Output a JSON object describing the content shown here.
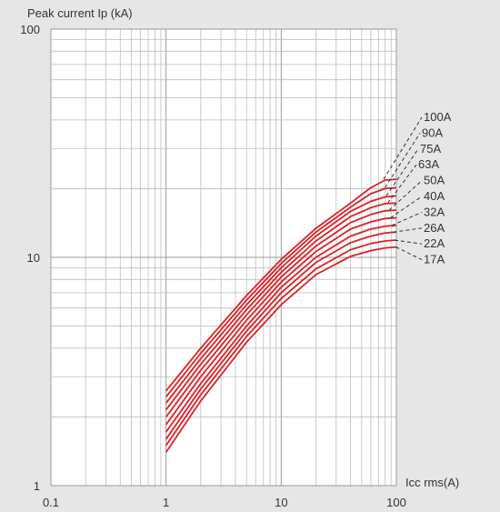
{
  "chart_data": {
    "type": "line",
    "xlabel": "Icc rms(A)",
    "ylabel": "Peak current Ip (kA)",
    "xscale": "log",
    "yscale": "log",
    "xlim": [
      0.1,
      100
    ],
    "ylim": [
      1,
      100
    ],
    "xticks": [
      "0.1",
      "1",
      "10",
      "100"
    ],
    "yticks": [
      "1",
      "10",
      "100"
    ],
    "grid": true,
    "line_color": "#dd1f26",
    "background": "#ffffff",
    "x": [
      1,
      2,
      5,
      10,
      20,
      40,
      60,
      80,
      100
    ],
    "series": [
      {
        "name": "100A",
        "values": [
          2.6,
          4.0,
          6.8,
          9.8,
          13.4,
          17.3,
          20.2,
          21.8,
          22.0
        ]
      },
      {
        "name": "90A",
        "values": [
          2.45,
          3.8,
          6.5,
          9.4,
          12.9,
          16.6,
          19.0,
          20.0,
          20.2
        ]
      },
      {
        "name": "75A",
        "values": [
          2.3,
          3.6,
          6.2,
          9.0,
          12.4,
          15.9,
          17.6,
          18.4,
          18.6
        ]
      },
      {
        "name": "63A",
        "values": [
          2.15,
          3.4,
          5.9,
          8.6,
          11.8,
          15.1,
          16.5,
          17.2,
          17.3
        ]
      },
      {
        "name": "50A",
        "values": [
          2.0,
          3.2,
          5.6,
          8.2,
          11.2,
          14.2,
          15.4,
          16.0,
          16.1
        ]
      },
      {
        "name": "40A",
        "values": [
          1.85,
          3.0,
          5.3,
          7.8,
          10.6,
          13.3,
          14.3,
          14.8,
          14.9
        ]
      },
      {
        "name": "32A",
        "values": [
          1.72,
          2.8,
          5.0,
          7.4,
          10.0,
          12.4,
          13.3,
          13.7,
          13.8
        ]
      },
      {
        "name": "26A",
        "values": [
          1.6,
          2.65,
          4.75,
          7.0,
          9.5,
          11.6,
          12.4,
          12.8,
          12.9
        ]
      },
      {
        "name": "22A",
        "values": [
          1.5,
          2.5,
          4.5,
          6.6,
          8.9,
          10.8,
          11.5,
          11.8,
          11.9
        ]
      },
      {
        "name": "17A",
        "values": [
          1.4,
          2.35,
          4.25,
          6.2,
          8.4,
          10.1,
          10.7,
          11.0,
          11.1
        ]
      }
    ]
  }
}
